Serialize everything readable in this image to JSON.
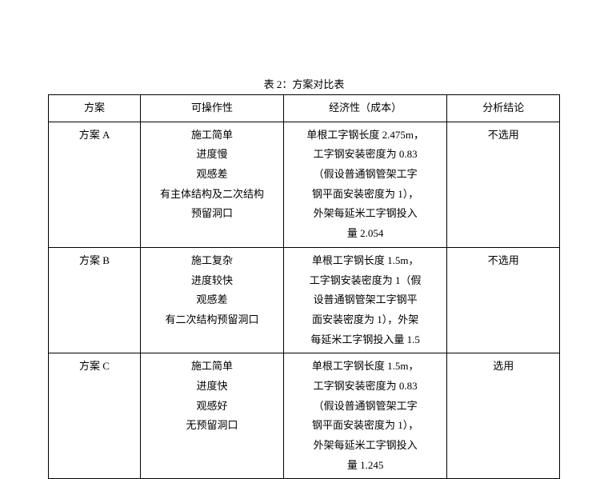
{
  "caption": "表 2：方案对比表",
  "headers": {
    "plan": "方案",
    "operability": "可操作性",
    "economy": "经济性（成本）",
    "conclusion": "分析结论"
  },
  "rows": [
    {
      "plan": "方案 A",
      "operability": "施工简单\n进度慢\n观感差\n有主体结构及二次结构\n预留洞口",
      "economy": "单根工字钢长度 2.475m，\n工字钢安装密度为 0.83\n（假设普通钢管架工字\n钢平面安装密度为 1），\n外架每延米工字钢投入\n量 2.054",
      "conclusion": "不选用"
    },
    {
      "plan": "方案 B",
      "operability": "施工复杂\n进度较快\n观感差\n有二次结构预留洞口",
      "economy": "单根工字钢长度 1.5m，\n工字钢安装密度为 1（假\n设普通钢管架工字钢平\n面安装密度为 1），外架\n每延米工字钢投入量 1.5",
      "conclusion": "不选用"
    },
    {
      "plan": "方案 C",
      "operability": "施工简单\n进度快\n观感好\n无预留洞口",
      "economy": "单根工字钢长度 1.5m，\n工字钢安装密度为 0.83\n（假设普通钢管架工字\n钢平面安装密度为 1），\n外架每延米工字钢投入\n量 1.245",
      "conclusion": "选用"
    }
  ],
  "styles": {
    "font_family": "SimSun",
    "font_size_pt": 13,
    "text_color": "#000000",
    "background_color": "#ffffff",
    "border_color": "#000000",
    "line_height": 1.9,
    "column_widths_pct": {
      "plan": 18,
      "operability": 28,
      "economy": 32,
      "conclusion": 22
    }
  }
}
